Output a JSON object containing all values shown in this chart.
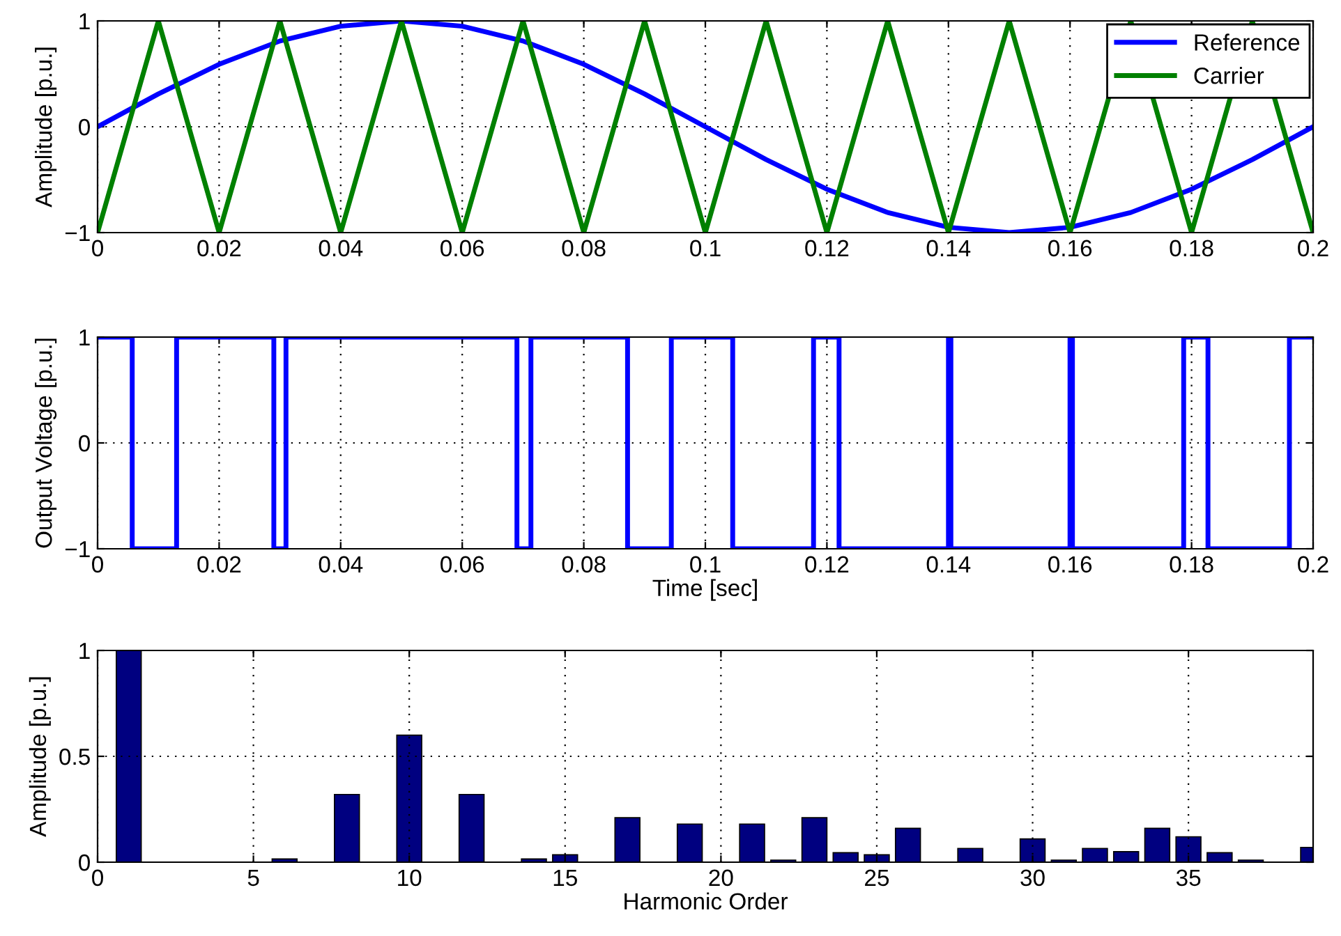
{
  "chart_data": [
    {
      "type": "line",
      "ylabel": "Amplitude [p.u.]",
      "xlim": [
        0,
        0.2
      ],
      "ylim": [
        -1,
        1
      ],
      "xticks": [
        0,
        0.02,
        0.04,
        0.06,
        0.08,
        0.1,
        0.12,
        0.14,
        0.16,
        0.18,
        0.2
      ],
      "yticks": [
        -1,
        0,
        1
      ],
      "grid": true,
      "legend": "top right",
      "series": [
        {
          "name": "Reference",
          "color": "#0000ff",
          "x": [
            0,
            0.01,
            0.02,
            0.03,
            0.04,
            0.05,
            0.06,
            0.07,
            0.08,
            0.09,
            0.1,
            0.11,
            0.12,
            0.13,
            0.14,
            0.15,
            0.16,
            0.17,
            0.18,
            0.19,
            0.2
          ],
          "values": [
            0,
            0.31,
            0.59,
            0.81,
            0.95,
            1,
            0.95,
            0.81,
            0.59,
            0.31,
            0,
            -0.31,
            -0.59,
            -0.81,
            -0.95,
            -1,
            -0.95,
            -0.81,
            -0.59,
            -0.31,
            0
          ]
        },
        {
          "name": "Carrier",
          "color": "#008000",
          "x": [
            0,
            0.01,
            0.02,
            0.03,
            0.04,
            0.05,
            0.06,
            0.07,
            0.08,
            0.09,
            0.1,
            0.11,
            0.12,
            0.13,
            0.14,
            0.15,
            0.16,
            0.17,
            0.18,
            0.19,
            0.2
          ],
          "values": [
            -1,
            1,
            -1,
            1,
            -1,
            1,
            -1,
            1,
            -1,
            1,
            -1,
            1,
            -1,
            1,
            -1,
            1,
            -1,
            1,
            -1,
            1,
            -1
          ]
        }
      ]
    },
    {
      "type": "step",
      "xlabel": "Time [sec]",
      "ylabel": "Output Voltage [p.u.]",
      "xlim": [
        0,
        0.2
      ],
      "ylim": [
        -1,
        1
      ],
      "xticks": [
        0,
        0.02,
        0.04,
        0.06,
        0.08,
        0.1,
        0.12,
        0.14,
        0.16,
        0.18,
        0.2
      ],
      "yticks": [
        -1,
        0,
        1
      ],
      "grid": true,
      "series": [
        {
          "color": "#0000ff",
          "x": [
            0,
            0.0057,
            0.013,
            0.029,
            0.031,
            0.069,
            0.0713,
            0.0872,
            0.0944,
            0.1045,
            0.1178,
            0.122,
            0.14,
            0.1404,
            0.16,
            0.1604,
            0.1787,
            0.1827,
            0.1961,
            0.2
          ],
          "values": [
            1,
            -1,
            1,
            -1,
            1,
            -1,
            1,
            -1,
            1,
            -1,
            1,
            -1,
            1,
            -1,
            1,
            -1,
            1,
            -1,
            1,
            1
          ]
        }
      ]
    },
    {
      "type": "bar",
      "xlabel": "Harmonic Order",
      "ylabel": "Amplitude [p.u.]",
      "xlim": [
        0,
        39
      ],
      "ylim": [
        0,
        1
      ],
      "xticks": [
        0,
        5,
        10,
        15,
        20,
        25,
        30,
        35
      ],
      "yticks": [
        0,
        0.5,
        1
      ],
      "grid": true,
      "series": [
        {
          "color": "#000080",
          "x": [
            1,
            2,
            3,
            4,
            5,
            6,
            7,
            8,
            9,
            10,
            11,
            12,
            13,
            14,
            15,
            16,
            17,
            18,
            19,
            20,
            21,
            22,
            23,
            24,
            25,
            26,
            27,
            28,
            29,
            30,
            31,
            32,
            33,
            34,
            35,
            36,
            37,
            38,
            39
          ],
          "values": [
            1,
            0,
            0,
            0,
            0,
            0.015,
            0,
            0.32,
            0,
            0.6,
            0,
            0.32,
            0,
            0.015,
            0.035,
            0,
            0.21,
            0,
            0.18,
            0,
            0.18,
            0.01,
            0.21,
            0.045,
            0.035,
            0.16,
            0,
            0.065,
            0,
            0.11,
            0.01,
            0.065,
            0.05,
            0.16,
            0.12,
            0.045,
            0.01,
            0,
            0.07
          ]
        }
      ]
    }
  ]
}
